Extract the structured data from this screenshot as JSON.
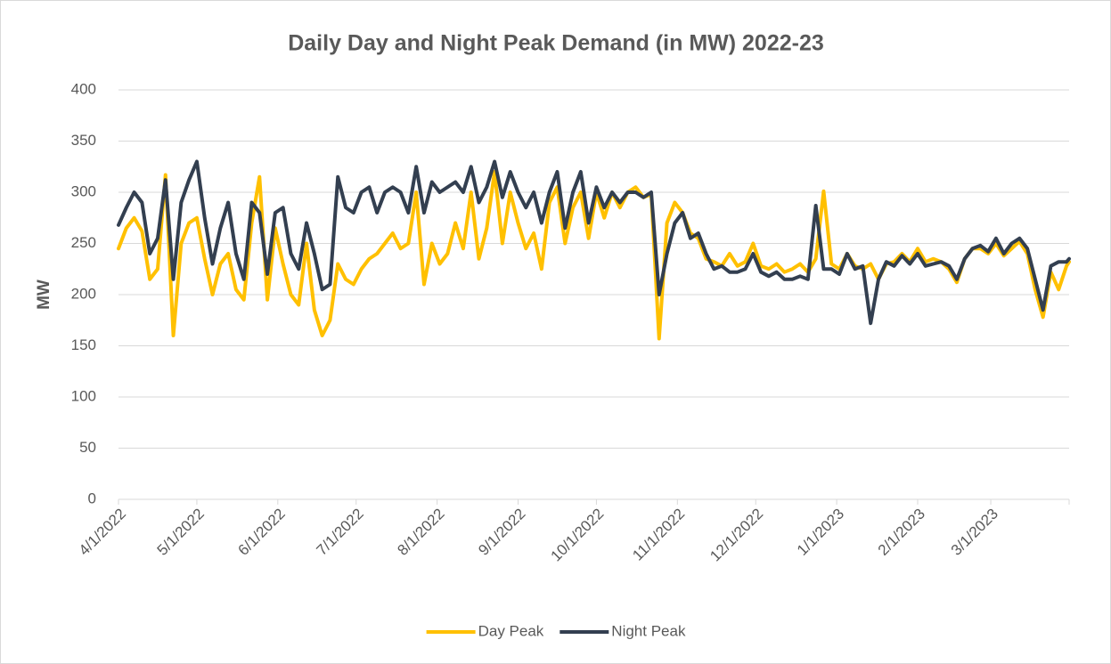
{
  "chart_data": {
    "type": "line",
    "title": "Daily Day and Night Peak Demand (in MW) 2022-23",
    "y_label": "MW",
    "x": [
      "2022-04-01",
      "2022-04-04",
      "2022-04-07",
      "2022-04-10",
      "2022-04-13",
      "2022-04-16",
      "2022-04-19",
      "2022-04-22",
      "2022-04-25",
      "2022-04-28",
      "2022-05-01",
      "2022-05-04",
      "2022-05-07",
      "2022-05-10",
      "2022-05-13",
      "2022-05-16",
      "2022-05-19",
      "2022-05-22",
      "2022-05-25",
      "2022-05-28",
      "2022-05-31",
      "2022-06-03",
      "2022-06-06",
      "2022-06-09",
      "2022-06-12",
      "2022-06-15",
      "2022-06-18",
      "2022-06-21",
      "2022-06-24",
      "2022-06-27",
      "2022-06-30",
      "2022-07-03",
      "2022-07-06",
      "2022-07-09",
      "2022-07-12",
      "2022-07-15",
      "2022-07-18",
      "2022-07-21",
      "2022-07-24",
      "2022-07-27",
      "2022-07-30",
      "2022-08-02",
      "2022-08-05",
      "2022-08-08",
      "2022-08-11",
      "2022-08-14",
      "2022-08-17",
      "2022-08-20",
      "2022-08-23",
      "2022-08-26",
      "2022-08-29",
      "2022-09-01",
      "2022-09-04",
      "2022-09-07",
      "2022-09-10",
      "2022-09-13",
      "2022-09-16",
      "2022-09-19",
      "2022-09-22",
      "2022-09-25",
      "2022-09-28",
      "2022-10-01",
      "2022-10-04",
      "2022-10-07",
      "2022-10-10",
      "2022-10-13",
      "2022-10-16",
      "2022-10-19",
      "2022-10-22",
      "2022-10-25",
      "2022-10-28",
      "2022-10-31",
      "2022-11-03",
      "2022-11-06",
      "2022-11-09",
      "2022-11-12",
      "2022-11-15",
      "2022-11-18",
      "2022-11-21",
      "2022-11-24",
      "2022-11-27",
      "2022-11-30",
      "2022-12-03",
      "2022-12-06",
      "2022-12-09",
      "2022-12-12",
      "2022-12-15",
      "2022-12-18",
      "2022-12-21",
      "2022-12-24",
      "2022-12-27",
      "2022-12-30",
      "2023-01-02",
      "2023-01-05",
      "2023-01-08",
      "2023-01-11",
      "2023-01-14",
      "2023-01-17",
      "2023-01-20",
      "2023-01-23",
      "2023-01-26",
      "2023-01-29",
      "2023-02-01",
      "2023-02-04",
      "2023-02-07",
      "2023-02-10",
      "2023-02-13",
      "2023-02-16",
      "2023-02-19",
      "2023-02-22",
      "2023-02-25",
      "2023-02-28",
      "2023-03-03",
      "2023-03-06",
      "2023-03-09",
      "2023-03-12",
      "2023-03-15",
      "2023-03-18",
      "2023-03-21",
      "2023-03-24",
      "2023-03-27",
      "2023-03-30",
      "2023-03-31"
    ],
    "series": [
      {
        "name": "Day Peak",
        "color": "#FFC000",
        "values": [
          245,
          265,
          275,
          262,
          215,
          225,
          317,
          160,
          250,
          270,
          275,
          235,
          200,
          230,
          240,
          205,
          195,
          270,
          315,
          195,
          265,
          230,
          200,
          190,
          250,
          185,
          160,
          175,
          230,
          215,
          210,
          225,
          235,
          240,
          250,
          260,
          245,
          250,
          300,
          210,
          250,
          230,
          240,
          270,
          245,
          300,
          235,
          265,
          320,
          250,
          300,
          270,
          245,
          260,
          225,
          290,
          305,
          250,
          285,
          300,
          255,
          300,
          275,
          300,
          285,
          300,
          305,
          295,
          298,
          157,
          270,
          290,
          280,
          260,
          255,
          235,
          232,
          228,
          240,
          228,
          232,
          250,
          228,
          225,
          230,
          222,
          225,
          230,
          222,
          235,
          301,
          230,
          225,
          240,
          228,
          225,
          230,
          215,
          230,
          232,
          240,
          232,
          245,
          232,
          235,
          232,
          225,
          212,
          235,
          245,
          245,
          240,
          250,
          238,
          245,
          252,
          240,
          205,
          178,
          222,
          205,
          228,
          232
        ]
      },
      {
        "name": "Night Peak",
        "color": "#333F50",
        "values": [
          268,
          285,
          300,
          290,
          240,
          255,
          312,
          215,
          290,
          312,
          330,
          275,
          230,
          265,
          290,
          240,
          215,
          290,
          280,
          220,
          280,
          285,
          240,
          225,
          270,
          240,
          205,
          210,
          315,
          285,
          280,
          300,
          305,
          280,
          300,
          305,
          300,
          280,
          325,
          280,
          310,
          300,
          305,
          310,
          300,
          325,
          290,
          305,
          330,
          295,
          320,
          300,
          285,
          300,
          270,
          300,
          320,
          265,
          300,
          320,
          270,
          305,
          285,
          300,
          290,
          300,
          300,
          295,
          300,
          200,
          240,
          270,
          280,
          255,
          260,
          240,
          225,
          228,
          222,
          222,
          225,
          240,
          222,
          218,
          222,
          215,
          215,
          218,
          215,
          287,
          225,
          225,
          220,
          240,
          225,
          228,
          172,
          215,
          232,
          228,
          238,
          230,
          240,
          228,
          230,
          232,
          228,
          215,
          235,
          245,
          248,
          242,
          255,
          240,
          250,
          255,
          245,
          215,
          185,
          228,
          232,
          232,
          235
        ]
      }
    ],
    "xlim": [
      "2022-04-01",
      "2023-03-31"
    ],
    "xticks": [
      {
        "value": "2022-04-01",
        "label": "4/1/2022"
      },
      {
        "value": "2022-05-01",
        "label": "5/1/2022"
      },
      {
        "value": "2022-06-01",
        "label": "6/1/2022"
      },
      {
        "value": "2022-07-01",
        "label": "7/1/2022"
      },
      {
        "value": "2022-08-01",
        "label": "8/1/2022"
      },
      {
        "value": "2022-09-01",
        "label": "9/1/2022"
      },
      {
        "value": "2022-10-01",
        "label": "10/1/2022"
      },
      {
        "value": "2022-11-01",
        "label": "11/1/2022"
      },
      {
        "value": "2022-12-01",
        "label": "12/1/2022"
      },
      {
        "value": "2023-01-01",
        "label": "1/1/2023"
      },
      {
        "value": "2023-02-01",
        "label": "2/1/2023"
      },
      {
        "value": "2023-03-01",
        "label": "3/1/2023"
      }
    ],
    "ylim": [
      0,
      400
    ],
    "yticks": [
      0,
      50,
      100,
      150,
      200,
      250,
      300,
      350,
      400
    ],
    "grid": true,
    "legend": "bottom"
  }
}
